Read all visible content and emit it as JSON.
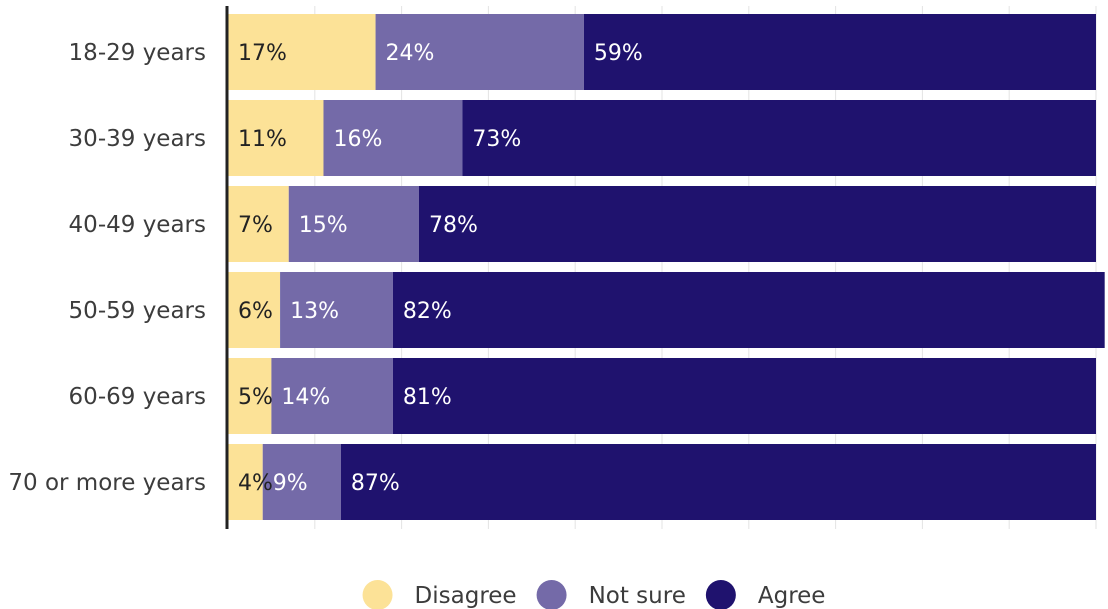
{
  "chart_data": {
    "type": "bar",
    "orientation": "horizontal",
    "stacked": true,
    "categories": [
      "18-29 years",
      "30-39 years",
      "40-49 years",
      "50-59 years",
      "60-69 years",
      "70 or more years"
    ],
    "series": [
      {
        "name": "Disagree",
        "color": "#fce297",
        "label_color": "#222222",
        "values": [
          17,
          11,
          7,
          6,
          5,
          4
        ]
      },
      {
        "name": "Not sure",
        "color": "#746aa8",
        "label_color": "#ffffff",
        "values": [
          24,
          16,
          15,
          13,
          14,
          9
        ]
      },
      {
        "name": "Agree",
        "color": "#1f126e",
        "label_color": "#ffffff",
        "values": [
          59,
          73,
          78,
          82,
          81,
          87
        ]
      }
    ],
    "value_suffix": "%",
    "xlim": [
      0,
      100
    ],
    "grid": true,
    "legend_position": "bottom-center"
  }
}
